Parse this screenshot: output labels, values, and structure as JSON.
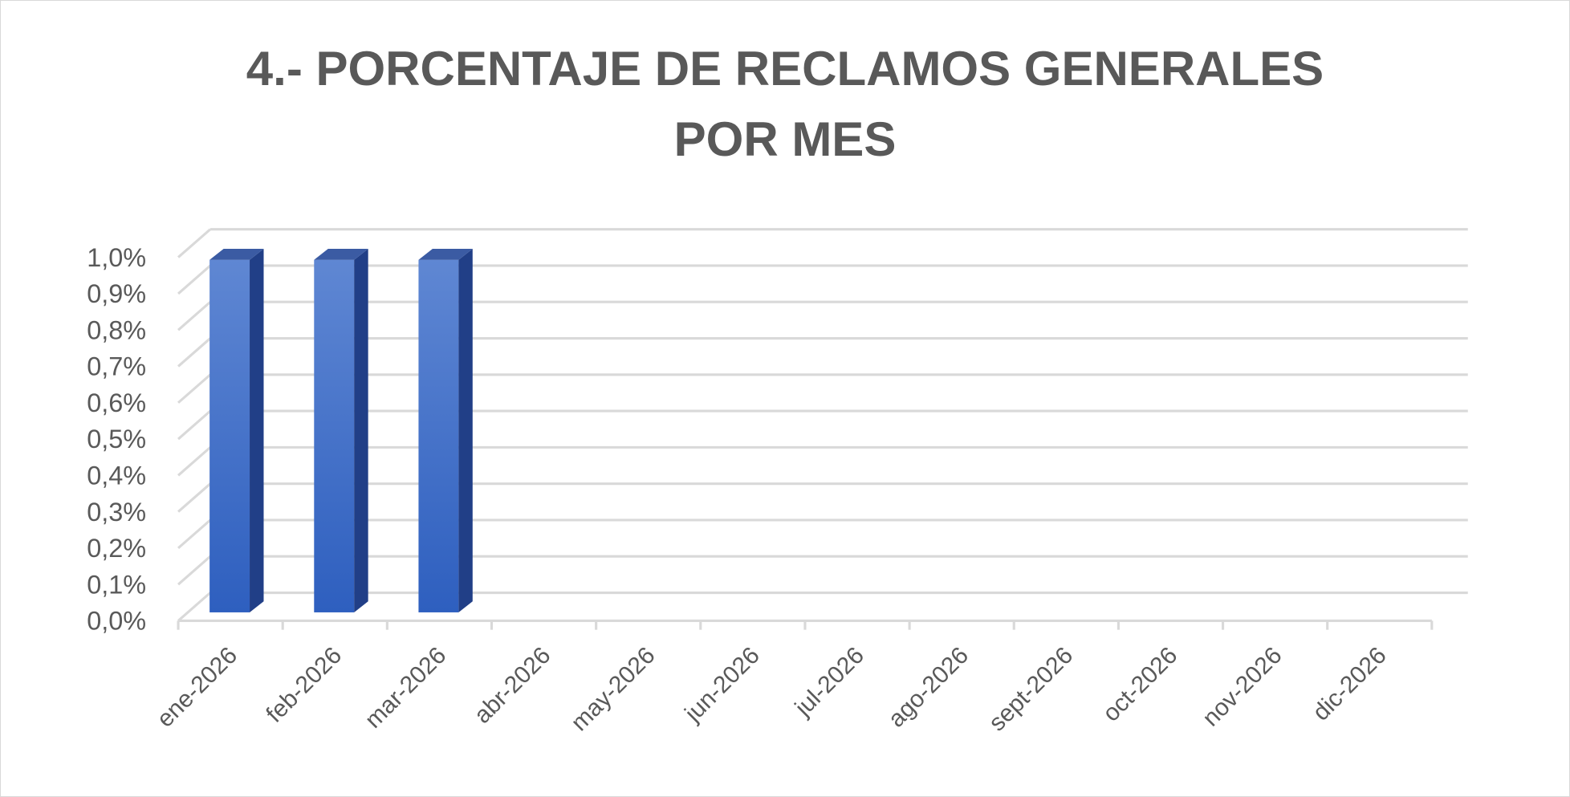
{
  "chart_data": {
    "type": "bar3d",
    "title": "4.- PORCENTAJE DE RECLAMOS GENERALES POR MES",
    "categories": [
      "ene-2026",
      "feb-2026",
      "mar-2026",
      "abr-2026",
      "may-2026",
      "jun-2026",
      "jul-2026",
      "ago-2026",
      "sept-2026",
      "oct-2026",
      "nov-2026",
      "dic-2026"
    ],
    "values": [
      0.97,
      0.97,
      0.97,
      null,
      null,
      null,
      null,
      null,
      null,
      null,
      null,
      null
    ],
    "color": "#4472c4",
    "ylim": [
      0,
      1.0
    ],
    "yticks": [
      {
        "value": 0,
        "label": "0,0%"
      },
      {
        "value": 0.1,
        "label": "0,1%"
      },
      {
        "value": 0.2,
        "label": "0,2%"
      },
      {
        "value": 0.3,
        "label": "0,3%"
      },
      {
        "value": 0.4,
        "label": "0,4%"
      },
      {
        "value": 0.5,
        "label": "0,5%"
      },
      {
        "value": 0.6,
        "label": "0,6%"
      },
      {
        "value": 0.7,
        "label": "0,7%"
      },
      {
        "value": 0.8,
        "label": "0,8%"
      },
      {
        "value": 0.9,
        "label": "0,9%"
      },
      {
        "value": 1.0,
        "label": "1,0%"
      }
    ],
    "grid": true
  }
}
